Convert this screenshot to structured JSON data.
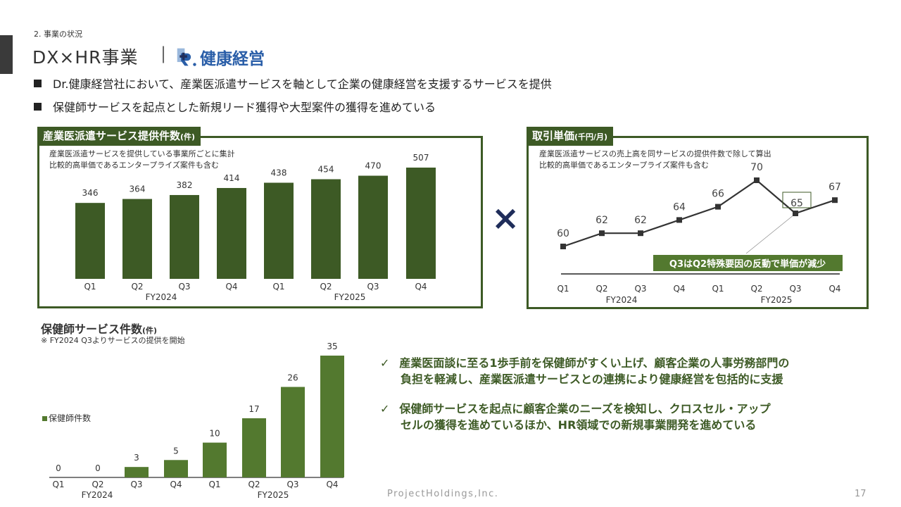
{
  "header": {
    "section": "2. 事業の状況",
    "title": "DX×HR事業",
    "separator": "|",
    "logo_text": "健康経営",
    "logo_mark": "DR."
  },
  "bullets": [
    "Dr.健康経営社において、産業医派遣サービスを軸として企業の健康経営を支援するサービスを提供",
    "保健師サービスを起点とした新規リード獲得や大型案件の獲得を進めている"
  ],
  "multiply_sign": "×",
  "colors": {
    "dark_green": "#3d5a25",
    "bar_green": "#53792f",
    "line": "#333333",
    "logo_blue": "#2a5ea8",
    "multiply": "#1f2d5a"
  },
  "chart_data": [
    {
      "type": "bar",
      "title": "産業医派遣サービス提供件数",
      "unit": "(件)",
      "notes": [
        "産業医派遣サービスを提供している事業所ごとに集計",
        "比較的高単価であるエンタープライズ案件も含む"
      ],
      "categories": [
        "Q1",
        "Q2",
        "Q3",
        "Q4",
        "Q1",
        "Q2",
        "Q3",
        "Q4"
      ],
      "groups": [
        "FY2024",
        "FY2025"
      ],
      "values": [
        346,
        364,
        382,
        414,
        438,
        454,
        470,
        507
      ],
      "ylim": [
        0,
        520
      ],
      "color": "#3d5a25"
    },
    {
      "type": "line",
      "title": "取引単価",
      "unit": "(千円/月)",
      "notes": [
        "産業医派遣サービスの売上高を同サービスの提供件数で除して算出",
        "比較的高単価であるエンタープライズ案件も含む"
      ],
      "categories": [
        "Q1",
        "Q2",
        "Q3",
        "Q4",
        "Q1",
        "Q2",
        "Q3",
        "Q4"
      ],
      "groups": [
        "FY2024",
        "FY2025"
      ],
      "values": [
        60,
        62,
        62,
        64,
        66,
        70,
        65,
        67
      ],
      "annotation": "Q3はQ2特殊要因の反動で単価が減少",
      "highlight_index": 6
    },
    {
      "type": "bar",
      "title": "保健師サービス件数",
      "unit": "(件)",
      "notes": [
        "※ FY2024 Q3よりサービスの提供を開始"
      ],
      "categories": [
        "Q1",
        "Q2",
        "Q3",
        "Q4",
        "Q1",
        "Q2",
        "Q3",
        "Q4"
      ],
      "groups": [
        "FY2024",
        "FY2025"
      ],
      "series": [
        {
          "name": "保健師件数",
          "values": [
            0,
            0,
            3,
            5,
            10,
            17,
            26,
            35
          ]
        }
      ],
      "legend": "left",
      "color": "#53792f"
    }
  ],
  "checks": [
    [
      "産業医面談に至る1歩手前を保健師がすくい上げ、顧客企業の人事労務部門の",
      "負担を軽減し、産業医派遣サービスとの連携により健康経営を包括的に支援"
    ],
    [
      "保健師サービスを起点に顧客企業のニーズを検知し、クロスセル・アップ",
      "セルの獲得を進めているほか、HR領域での新規事業開発を進めている"
    ]
  ],
  "check_mark": "✓",
  "footer": {
    "company": "ProjectHoldings,Inc.",
    "page": "17"
  }
}
